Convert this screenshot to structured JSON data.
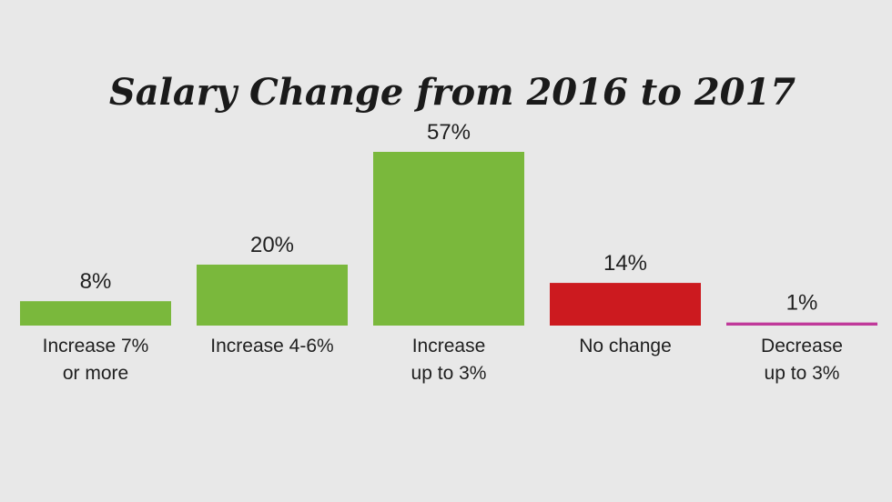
{
  "chart_data": {
    "type": "bar",
    "title": "Salary Change from 2016 to 2017",
    "categories": [
      [
        "Increase 7%",
        "or more"
      ],
      [
        "Increase 4-6%"
      ],
      [
        "Increase",
        "up to 3%"
      ],
      [
        "No change"
      ],
      [
        "Decrease",
        "up to 3%"
      ]
    ],
    "values": [
      8,
      20,
      57,
      14,
      1
    ],
    "value_labels": [
      "8%",
      "20%",
      "57%",
      "14%",
      "1%"
    ],
    "colors": [
      "#7ab83c",
      "#7ab83c",
      "#7ab83c",
      "#cc1a1f",
      "#c0399a"
    ],
    "ylabel": "",
    "xlabel": "",
    "ylim": [
      0,
      57
    ],
    "grid": false,
    "legend": "none"
  }
}
